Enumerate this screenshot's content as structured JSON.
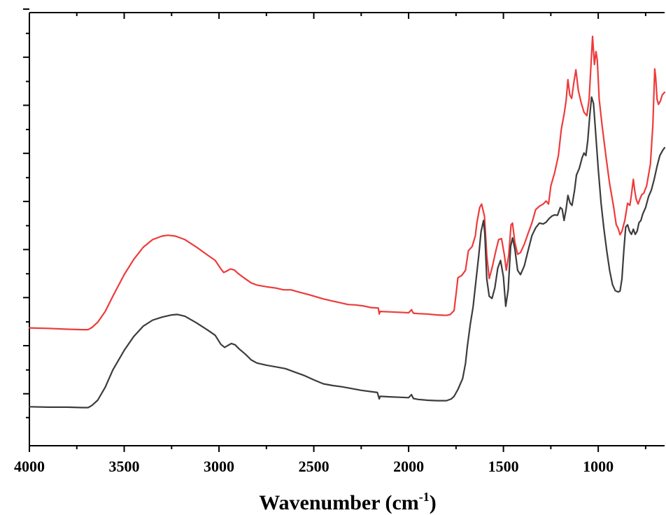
{
  "chart_data": {
    "type": "line",
    "title": "",
    "xlabel": "Wavenumber (cm",
    "xlabel_sup": "-1",
    "xlabel_end": ")",
    "ylabel": "",
    "xlim": [
      4000,
      650
    ],
    "ylim": [
      0,
      100
    ],
    "x_reversed": true,
    "x_ticks": [
      4000,
      3500,
      3000,
      2500,
      2000,
      1500,
      1000
    ],
    "x_tick_labels": [
      "4000",
      "3500",
      "3000",
      "2500",
      "2000",
      "1500",
      "1000"
    ],
    "x_minor_ticks": [
      3750,
      3250,
      2750,
      2250,
      1750,
      1250,
      750
    ],
    "y_ticks": [
      12,
      23.1,
      34.2,
      45.3,
      56.4,
      67.5,
      78.6,
      89.7,
      100.8
    ],
    "y_minor_ticks": [
      6.5,
      17.5,
      28.6,
      39.7,
      50.8,
      61.9,
      73,
      84.1,
      95.2
    ],
    "grid": false,
    "legend": "none",
    "series": [
      {
        "color": "#ee3b3b",
        "points": [
          [
            4000,
            27.2
          ],
          [
            3900,
            27.1
          ],
          [
            3800,
            26.9
          ],
          [
            3720,
            26.8
          ],
          [
            3690,
            26.8
          ],
          [
            3670,
            27.3
          ],
          [
            3640,
            28.5
          ],
          [
            3600,
            31.0
          ],
          [
            3560,
            34.5
          ],
          [
            3500,
            39.5
          ],
          [
            3450,
            43.0
          ],
          [
            3400,
            45.8
          ],
          [
            3350,
            47.6
          ],
          [
            3300,
            48.4
          ],
          [
            3270,
            48.6
          ],
          [
            3230,
            48.4
          ],
          [
            3180,
            47.6
          ],
          [
            3120,
            45.9
          ],
          [
            3060,
            44.0
          ],
          [
            3020,
            42.8
          ],
          [
            2990,
            40.8
          ],
          [
            2975,
            40.0
          ],
          [
            2960,
            40.3
          ],
          [
            2940,
            40.8
          ],
          [
            2920,
            40.6
          ],
          [
            2900,
            39.8
          ],
          [
            2870,
            38.8
          ],
          [
            2830,
            37.6
          ],
          [
            2800,
            37.1
          ],
          [
            2750,
            36.7
          ],
          [
            2700,
            36.4
          ],
          [
            2660,
            36.0
          ],
          [
            2620,
            36.0
          ],
          [
            2580,
            35.5
          ],
          [
            2520,
            34.8
          ],
          [
            2450,
            33.9
          ],
          [
            2400,
            33.4
          ],
          [
            2350,
            32.9
          ],
          [
            2320,
            32.6
          ],
          [
            2280,
            32.5
          ],
          [
            2240,
            32.3
          ],
          [
            2200,
            31.9
          ],
          [
            2160,
            31.8
          ],
          [
            2155,
            30.4
          ],
          [
            2150,
            31.0
          ],
          [
            2100,
            30.9
          ],
          [
            2050,
            30.8
          ],
          [
            2000,
            30.7
          ],
          [
            1985,
            31.4
          ],
          [
            1975,
            30.6
          ],
          [
            1950,
            30.5
          ],
          [
            1900,
            30.4
          ],
          [
            1850,
            30.2
          ],
          [
            1800,
            30.1
          ],
          [
            1780,
            30.3
          ],
          [
            1760,
            31.2
          ],
          [
            1750,
            35.0
          ],
          [
            1740,
            38.8
          ],
          [
            1720,
            39.3
          ],
          [
            1700,
            40.5
          ],
          [
            1685,
            45.0
          ],
          [
            1665,
            46.0
          ],
          [
            1648,
            48.5
          ],
          [
            1640,
            51.5
          ],
          [
            1625,
            55.0
          ],
          [
            1615,
            55.8
          ],
          [
            1600,
            53.0
          ],
          [
            1588,
            44.0
          ],
          [
            1575,
            38.6
          ],
          [
            1560,
            41.0
          ],
          [
            1540,
            45.0
          ],
          [
            1525,
            47.6
          ],
          [
            1510,
            47.8
          ],
          [
            1495,
            44.0
          ],
          [
            1485,
            40.5
          ],
          [
            1472,
            44.0
          ],
          [
            1460,
            51.0
          ],
          [
            1452,
            51.4
          ],
          [
            1440,
            47.0
          ],
          [
            1425,
            44.2
          ],
          [
            1410,
            44.6
          ],
          [
            1390,
            46.5
          ],
          [
            1370,
            49.0
          ],
          [
            1350,
            51.4
          ],
          [
            1330,
            54.5
          ],
          [
            1310,
            55.3
          ],
          [
            1290,
            55.8
          ],
          [
            1275,
            56.5
          ],
          [
            1262,
            55.8
          ],
          [
            1250,
            60.0
          ],
          [
            1230,
            63.0
          ],
          [
            1210,
            67.0
          ],
          [
            1195,
            73.0
          ],
          [
            1180,
            76.5
          ],
          [
            1170,
            79.5
          ],
          [
            1160,
            84.5
          ],
          [
            1150,
            81.0
          ],
          [
            1140,
            80.2
          ],
          [
            1128,
            84.0
          ],
          [
            1118,
            86.8
          ],
          [
            1105,
            82.0
          ],
          [
            1090,
            79.2
          ],
          [
            1075,
            77.0
          ],
          [
            1060,
            76.2
          ],
          [
            1048,
            80.0
          ],
          [
            1038,
            88.0
          ],
          [
            1030,
            94.5
          ],
          [
            1020,
            88.0
          ],
          [
            1012,
            91.0
          ],
          [
            1005,
            89.0
          ],
          [
            995,
            80.0
          ],
          [
            980,
            74.0
          ],
          [
            960,
            67.0
          ],
          [
            940,
            60.5
          ],
          [
            920,
            55.5
          ],
          [
            905,
            51.0
          ],
          [
            895,
            50.2
          ],
          [
            885,
            48.7
          ],
          [
            875,
            49.5
          ],
          [
            860,
            52.0
          ],
          [
            845,
            56.0
          ],
          [
            833,
            55.5
          ],
          [
            825,
            58.0
          ],
          [
            815,
            61.5
          ],
          [
            808,
            59.0
          ],
          [
            800,
            57.0
          ],
          [
            790,
            55.8
          ],
          [
            780,
            57.0
          ],
          [
            770,
            58.0
          ],
          [
            760,
            58.3
          ],
          [
            745,
            60.0
          ],
          [
            725,
            65.0
          ],
          [
            712,
            74.0
          ],
          [
            702,
            87.0
          ],
          [
            697,
            85.0
          ],
          [
            690,
            80.0
          ],
          [
            682,
            78.8
          ],
          [
            672,
            79.6
          ],
          [
            662,
            81.0
          ],
          [
            650,
            81.6
          ]
        ]
      },
      {
        "color": "#3c3c3c",
        "points": [
          [
            4000,
            9.0
          ],
          [
            3900,
            8.9
          ],
          [
            3800,
            8.9
          ],
          [
            3720,
            8.8
          ],
          [
            3690,
            8.8
          ],
          [
            3670,
            9.3
          ],
          [
            3640,
            10.5
          ],
          [
            3600,
            13.5
          ],
          [
            3560,
            17.5
          ],
          [
            3500,
            22.0
          ],
          [
            3450,
            25.2
          ],
          [
            3400,
            27.6
          ],
          [
            3350,
            29.0
          ],
          [
            3300,
            29.7
          ],
          [
            3250,
            30.2
          ],
          [
            3220,
            30.3
          ],
          [
            3180,
            29.9
          ],
          [
            3120,
            28.4
          ],
          [
            3060,
            26.7
          ],
          [
            3020,
            25.5
          ],
          [
            2990,
            23.4
          ],
          [
            2970,
            22.7
          ],
          [
            2955,
            23.1
          ],
          [
            2935,
            23.6
          ],
          [
            2915,
            23.3
          ],
          [
            2895,
            22.4
          ],
          [
            2860,
            21.1
          ],
          [
            2830,
            19.8
          ],
          [
            2800,
            19.1
          ],
          [
            2750,
            18.6
          ],
          [
            2700,
            18.2
          ],
          [
            2650,
            17.8
          ],
          [
            2600,
            17.0
          ],
          [
            2550,
            16.2
          ],
          [
            2500,
            15.2
          ],
          [
            2450,
            14.3
          ],
          [
            2400,
            13.9
          ],
          [
            2350,
            13.6
          ],
          [
            2300,
            13.2
          ],
          [
            2250,
            12.8
          ],
          [
            2200,
            12.5
          ],
          [
            2165,
            12.3
          ],
          [
            2155,
            10.8
          ],
          [
            2150,
            11.4
          ],
          [
            2100,
            11.3
          ],
          [
            2050,
            11.2
          ],
          [
            2000,
            11.1
          ],
          [
            1985,
            11.8
          ],
          [
            1975,
            10.9
          ],
          [
            1950,
            10.7
          ],
          [
            1900,
            10.5
          ],
          [
            1850,
            10.4
          ],
          [
            1800,
            10.4
          ],
          [
            1775,
            10.8
          ],
          [
            1760,
            11.4
          ],
          [
            1740,
            13.0
          ],
          [
            1715,
            15.5
          ],
          [
            1700,
            19.0
          ],
          [
            1690,
            23.0
          ],
          [
            1675,
            28.0
          ],
          [
            1660,
            32.0
          ],
          [
            1645,
            38.0
          ],
          [
            1630,
            44.0
          ],
          [
            1618,
            49.4
          ],
          [
            1605,
            52.0
          ],
          [
            1598,
            49.0
          ],
          [
            1588,
            38.5
          ],
          [
            1575,
            34.5
          ],
          [
            1560,
            34.0
          ],
          [
            1545,
            36.5
          ],
          [
            1530,
            41.0
          ],
          [
            1515,
            42.8
          ],
          [
            1500,
            39.0
          ],
          [
            1488,
            32.2
          ],
          [
            1475,
            36.0
          ],
          [
            1462,
            46.0
          ],
          [
            1452,
            48.0
          ],
          [
            1440,
            45.5
          ],
          [
            1425,
            40.5
          ],
          [
            1410,
            39.5
          ],
          [
            1390,
            41.5
          ],
          [
            1370,
            45.0
          ],
          [
            1350,
            48.5
          ],
          [
            1330,
            50.3
          ],
          [
            1310,
            51.4
          ],
          [
            1290,
            51.2
          ],
          [
            1275,
            51.6
          ],
          [
            1260,
            52.4
          ],
          [
            1245,
            53.0
          ],
          [
            1230,
            53.3
          ],
          [
            1215,
            53.2
          ],
          [
            1200,
            55.0
          ],
          [
            1190,
            54.6
          ],
          [
            1180,
            52.0
          ],
          [
            1170,
            54.5
          ],
          [
            1160,
            57.8
          ],
          [
            1148,
            56.0
          ],
          [
            1138,
            55.5
          ],
          [
            1125,
            59.0
          ],
          [
            1115,
            62.5
          ],
          [
            1100,
            64.0
          ],
          [
            1085,
            66.5
          ],
          [
            1075,
            67.6
          ],
          [
            1065,
            67.0
          ],
          [
            1055,
            70.5
          ],
          [
            1045,
            76.0
          ],
          [
            1035,
            80.5
          ],
          [
            1025,
            79.0
          ],
          [
            1015,
            73.0
          ],
          [
            1000,
            64.0
          ],
          [
            985,
            56.0
          ],
          [
            970,
            50.0
          ],
          [
            955,
            45.0
          ],
          [
            940,
            40.5
          ],
          [
            925,
            37.2
          ],
          [
            910,
            35.8
          ],
          [
            895,
            35.5
          ],
          [
            885,
            35.7
          ],
          [
            875,
            38.5
          ],
          [
            865,
            45.0
          ],
          [
            855,
            50.5
          ],
          [
            845,
            51.0
          ],
          [
            835,
            49.5
          ],
          [
            825,
            48.8
          ],
          [
            815,
            50.0
          ],
          [
            805,
            48.8
          ],
          [
            795,
            49.5
          ],
          [
            785,
            51.5
          ],
          [
            775,
            52.0
          ],
          [
            765,
            53.5
          ],
          [
            750,
            55.0
          ],
          [
            735,
            57.5
          ],
          [
            720,
            59.0
          ],
          [
            705,
            61.5
          ],
          [
            690,
            64.5
          ],
          [
            675,
            67.0
          ],
          [
            660,
            68.2
          ],
          [
            650,
            68.8
          ]
        ]
      }
    ]
  }
}
